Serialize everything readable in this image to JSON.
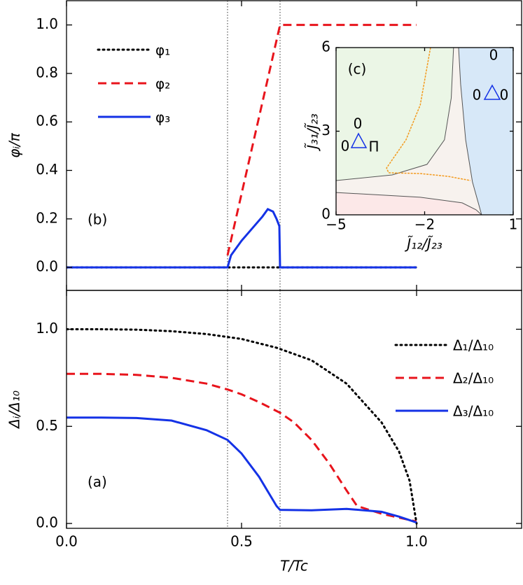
{
  "chart_data": [
    {
      "type": "line",
      "ylabel": "φᵢ/π",
      "label": "(b)",
      "legend": "upper left",
      "xlim": [
        0,
        1.3
      ],
      "xticks": [
        0,
        0.5,
        1
      ],
      "xtick_labels": false,
      "ylim": [
        -0.095,
        1.1
      ],
      "yticks": [
        {
          "value": 0,
          "label": "0.0"
        },
        0.2,
        0.4,
        0.6,
        0.8,
        {
          "value": 1,
          "label": "1.0"
        }
      ],
      "vlines": [
        0.46,
        0.61
      ],
      "series": [
        {
          "name": "φ₁",
          "color": "#000000",
          "dash": "dot",
          "x": [
            0,
            1.0
          ],
          "values": [
            0,
            0
          ]
        },
        {
          "name": "φ₂",
          "color": "#e8141c",
          "dash": "dash",
          "x": [
            0.46,
            0.61,
            1.0
          ],
          "values": [
            0.05,
            1.0,
            1.0
          ]
        },
        {
          "name": "φ₃",
          "color": "#1432e6",
          "dash": "solid",
          "x": [
            0,
            0.46,
            0.47,
            0.5,
            0.53,
            0.56,
            0.575,
            0.59,
            0.6,
            0.608,
            0.61,
            1.0
          ],
          "values": [
            0,
            0,
            0.05,
            0.11,
            0.16,
            0.21,
            0.24,
            0.23,
            0.2,
            0.17,
            0,
            0
          ]
        }
      ]
    },
    {
      "type": "line",
      "xlabel": "T/Tc",
      "ylabel": "Δᵢ/Δ₁₀",
      "label": "(a)",
      "legend": "upper right",
      "xlim": [
        0,
        1.3
      ],
      "xticks": [
        {
          "value": 0,
          "label": "0.0"
        },
        0.5,
        {
          "value": 1,
          "label": "1.0"
        }
      ],
      "ylim": [
        -0.025,
        1.2
      ],
      "yticks": [
        {
          "value": 0,
          "label": "0.0"
        },
        0.5,
        {
          "value": 1,
          "label": "1.0"
        }
      ],
      "vlines": [
        0.46,
        0.61
      ],
      "series": [
        {
          "name": "Δ₁/Δ₁₀",
          "color": "#000000",
          "dash": "dot",
          "x": [
            0,
            0.1,
            0.2,
            0.3,
            0.4,
            0.5,
            0.6,
            0.7,
            0.8,
            0.9,
            0.95,
            0.98,
            1.0
          ],
          "values": [
            1.0,
            1.0,
            0.998,
            0.99,
            0.975,
            0.95,
            0.905,
            0.84,
            0.72,
            0.52,
            0.37,
            0.22,
            0
          ]
        },
        {
          "name": "Δ₂/Δ₁₀",
          "color": "#e8141c",
          "dash": "dash",
          "x": [
            0,
            0.1,
            0.2,
            0.3,
            0.4,
            0.46,
            0.5,
            0.55,
            0.61,
            0.65,
            0.7,
            0.75,
            0.8,
            0.83,
            0.9,
            0.95,
            1.0
          ],
          "values": [
            0.77,
            0.77,
            0.765,
            0.75,
            0.72,
            0.69,
            0.665,
            0.625,
            0.57,
            0.52,
            0.43,
            0.31,
            0.17,
            0.09,
            0.05,
            0.03,
            0.01
          ]
        },
        {
          "name": "Δ₃/Δ₁₀",
          "color": "#1432e6",
          "dash": "solid",
          "x": [
            0,
            0.1,
            0.2,
            0.3,
            0.4,
            0.46,
            0.5,
            0.55,
            0.6,
            0.61,
            0.7,
            0.8,
            0.9,
            0.95,
            1.0
          ],
          "values": [
            0.545,
            0.545,
            0.543,
            0.53,
            0.48,
            0.43,
            0.36,
            0.24,
            0.09,
            0.07,
            0.068,
            0.075,
            0.06,
            0.035,
            0.005
          ]
        }
      ]
    },
    {
      "type": "phase",
      "xlabel": "J̃₁₂/J̃₂₃",
      "ylabel": "J̃₃₁/J̃₂₃",
      "background": "#f7f2ee",
      "xlim": [
        -5,
        1
      ],
      "xticks": [
        {
          "value": -5,
          "label": "−5"
        },
        {
          "value": -2,
          "label": "−2"
        },
        1
      ],
      "ylim": [
        0,
        6
      ],
      "yticks": [
        0,
        3,
        6
      ],
      "annotations": [
        "(c)",
        "0",
        "0",
        "0",
        "0",
        "0",
        "Π"
      ],
      "series": [
        {
          "color": "#555555",
          "dash": "solid",
          "fill": "#ebf6e6",
          "close_to": "top-left",
          "x": [
            -5,
            -3.1,
            -1.92,
            -1.33,
            -1.1,
            -1.02
          ],
          "values": [
            1.23,
            1.43,
            1.81,
            2.69,
            4.19,
            6
          ]
        },
        {
          "color": "#555555",
          "dash": "solid",
          "fill": "#fce8e8",
          "close_to": "bottom-left",
          "x": [
            -5,
            -2.15,
            -0.73,
            -0.26,
            -0.07
          ],
          "values": [
            0.8,
            0.63,
            0.43,
            0.18,
            0
          ]
        },
        {
          "color": "#555555",
          "dash": "solid",
          "fill": "#d7e8f8",
          "close_to": "right",
          "x": [
            -0.85,
            -0.78,
            -0.61,
            -0.38,
            -0.07
          ],
          "values": [
            6,
            4.69,
            2.69,
            1.18,
            0
          ]
        },
        {
          "color": "#f39a1e",
          "dash": "dash",
          "x": [
            -1.8,
            -2.15,
            -2.63,
            -3.29,
            -3.22,
            -2.15,
            -1.21,
            -0.45
          ],
          "values": [
            6,
            3.94,
            2.69,
            1.68,
            1.51,
            1.48,
            1.38,
            1.23
          ]
        }
      ]
    }
  ]
}
